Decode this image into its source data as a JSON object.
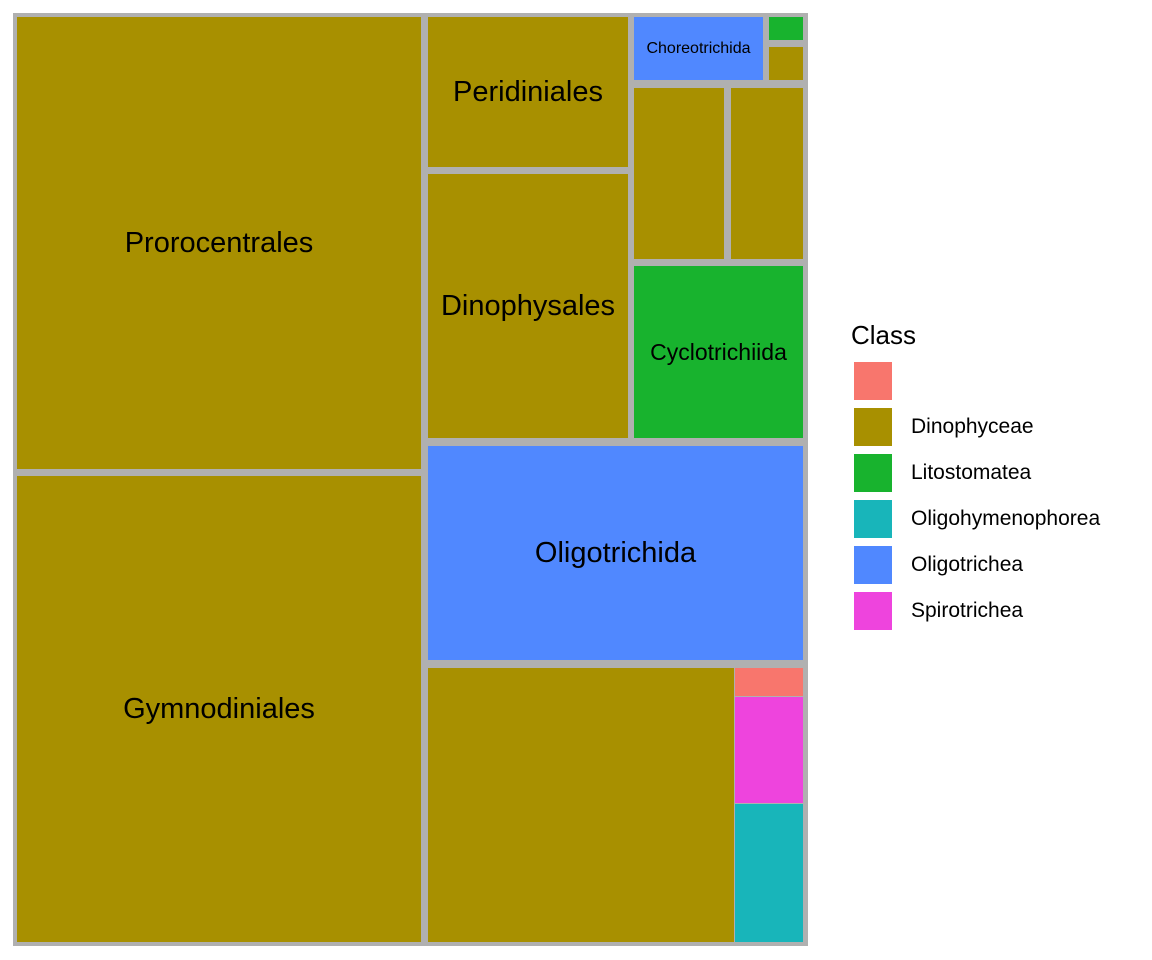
{
  "chart_data": {
    "type": "treemap",
    "title": "",
    "legend": {
      "title": "Class",
      "position": "right",
      "entries": [
        {
          "label": "",
          "color": "#F8766D"
        },
        {
          "label": "Dinophyceae",
          "color": "#A89000"
        },
        {
          "label": "Litostomatea",
          "color": "#18B32E"
        },
        {
          "label": "Oligohymenophorea",
          "color": "#18B5BA"
        },
        {
          "label": "Oligotrichea",
          "color": "#5088FF"
        },
        {
          "label": "Spirotrichea",
          "color": "#EE44DD"
        }
      ]
    },
    "groups": [
      {
        "class": "Dinophyceae",
        "children": [
          {
            "name": "Prorocentrales",
            "label": "Prorocentrales",
            "value": 164
          },
          {
            "name": "Gymnodiniales",
            "label": "Gymnodiniales",
            "value": 168
          },
          {
            "name": "Peridiniales",
            "label": "Peridiniales",
            "value": 27
          },
          {
            "name": "Dinophysales",
            "label": "Dinophysales",
            "value": 46
          },
          {
            "name": "dino-unlabeled-1",
            "label": "",
            "value": 14.5
          },
          {
            "name": "dino-unlabeled-2",
            "label": "",
            "value": 11
          },
          {
            "name": "dino-unlabeled-3",
            "label": "",
            "value": 1.2
          },
          {
            "name": "dino-unlabeled-4",
            "label": "",
            "value": 75
          }
        ]
      },
      {
        "class": "Oligotrichea",
        "children": [
          {
            "name": "Choreotrichida",
            "label": "Choreotrichida",
            "value": 6.3
          },
          {
            "name": "Oligotrichida",
            "label": "Oligotrichida",
            "value": 70
          }
        ]
      },
      {
        "class": "Litostomatea",
        "children": [
          {
            "name": "Cyclotrichiida",
            "label": "Cyclotrichiida",
            "value": 25
          },
          {
            "name": "lito-unlabeled-1",
            "label": "",
            "value": 0.6
          }
        ]
      },
      {
        "class": "",
        "children": [
          {
            "name": "unclassified-unlabeled-1",
            "label": "",
            "value": 1.8
          }
        ]
      },
      {
        "class": "Spirotrichea",
        "children": [
          {
            "name": "spiro-unlabeled-1",
            "label": "",
            "value": 6.4
          }
        ]
      },
      {
        "class": "Oligohymenophorea",
        "children": [
          {
            "name": "oligohym-unlabeled-1",
            "label": "",
            "value": 7.2
          }
        ]
      }
    ]
  }
}
